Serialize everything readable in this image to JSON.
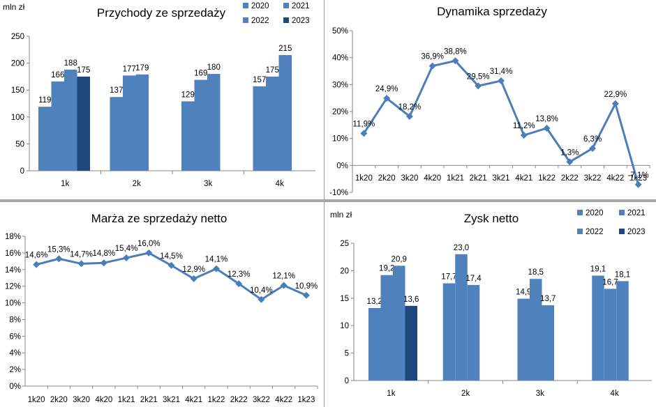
{
  "colors": {
    "bar_light": "#4f81bd",
    "bar_dark": "#1f497d",
    "line": "#4a7ebb",
    "axis": "#868686",
    "text": "#000000"
  },
  "panels": {
    "revenue": {
      "title": "Przychody ze sprzedaży",
      "unit": "mln zł"
    },
    "dynamics": {
      "title": "Dynamika sprzedaży"
    },
    "margin": {
      "title": "Marża ze sprzedaży netto"
    },
    "profit": {
      "title": "Zysk netto",
      "unit": "mln zł"
    }
  },
  "chart_data": [
    {
      "type": "bar",
      "title": "Przychody ze sprzedaży",
      "ylabel": "mln zł",
      "categories": [
        "1k",
        "2k",
        "3k",
        "4k"
      ],
      "series": [
        {
          "name": "2020",
          "values": [
            119,
            137,
            129,
            157
          ]
        },
        {
          "name": "2021",
          "values": [
            166,
            177,
            169,
            175
          ]
        },
        {
          "name": "2022",
          "values": [
            188,
            179,
            180,
            215
          ]
        },
        {
          "name": "2023",
          "values": [
            175,
            null,
            null,
            null
          ]
        }
      ],
      "data_labels": [
        [
          "119",
          "166",
          "188",
          "175"
        ],
        [
          "137",
          "177",
          "179",
          ""
        ],
        [
          "129",
          "169",
          "180",
          ""
        ],
        [
          "157",
          "175",
          "215",
          ""
        ]
      ],
      "yticks": [
        "0",
        "50",
        "100",
        "150",
        "200",
        "250"
      ],
      "ylim": [
        0,
        250
      ],
      "legend": "top-right",
      "grid": false
    },
    {
      "type": "line",
      "title": "Dynamika sprzedaży",
      "x": [
        "1k20",
        "2k20",
        "3k20",
        "4k20",
        "1k21",
        "2k21",
        "3k21",
        "4k21",
        "1k22",
        "2k22",
        "3k22",
        "4k22",
        "1k23"
      ],
      "values": [
        11.9,
        24.9,
        18.2,
        36.9,
        38.8,
        29.5,
        31.4,
        11.2,
        13.8,
        1.3,
        6.3,
        22.9,
        -7.1
      ],
      "data_labels": [
        "11,9%",
        "24,9%",
        "18,2%",
        "36,9%",
        "38,8%",
        "29,5%",
        "31,4%",
        "11,2%",
        "13,8%",
        "1,3%",
        "6,3%",
        "22,9%",
        "-7,1%"
      ],
      "yticks": [
        "-10%",
        "0%",
        "10%",
        "20%",
        "30%",
        "40%",
        "50%"
      ],
      "ylim": [
        -10,
        50
      ],
      "grid": false
    },
    {
      "type": "line",
      "title": "Marża ze sprzedaży netto",
      "x": [
        "1k20",
        "2k20",
        "3k20",
        "4k20",
        "1k21",
        "2k21",
        "3k21",
        "4k21",
        "1k22",
        "2k22",
        "3k22",
        "4k22",
        "1k23"
      ],
      "values": [
        14.6,
        15.3,
        14.7,
        14.8,
        15.4,
        16.0,
        14.5,
        12.9,
        14.1,
        12.3,
        10.4,
        12.1,
        10.9
      ],
      "data_labels": [
        "14,6%",
        "15,3%",
        "14,7%",
        "14,8%",
        "15,4%",
        "16,0%",
        "14,5%",
        "12,9%",
        "14,1%",
        "12,3%",
        "10,4%",
        "12,1%",
        "10,9%"
      ],
      "yticks": [
        "0%",
        "2%",
        "4%",
        "6%",
        "8%",
        "10%",
        "12%",
        "14%",
        "16%",
        "18%"
      ],
      "ylim": [
        0,
        18
      ],
      "grid": false
    },
    {
      "type": "bar",
      "title": "Zysk netto",
      "ylabel": "mln zł",
      "categories": [
        "1k",
        "2k",
        "3k",
        "4k"
      ],
      "series": [
        {
          "name": "2020",
          "values": [
            13.2,
            17.7,
            14.9,
            19.1
          ]
        },
        {
          "name": "2021",
          "values": [
            19.2,
            23.0,
            18.5,
            16.7
          ]
        },
        {
          "name": "2022",
          "values": [
            20.9,
            17.4,
            13.7,
            18.1
          ]
        },
        {
          "name": "2023",
          "values": [
            13.6,
            null,
            null,
            null
          ]
        }
      ],
      "data_labels": [
        [
          "13,2",
          "19,2",
          "20,9",
          "13,6"
        ],
        [
          "17,7",
          "23,0",
          "17,4",
          ""
        ],
        [
          "14,9",
          "18,5",
          "13,7",
          ""
        ],
        [
          "19,1",
          "16,7",
          "18,1",
          ""
        ]
      ],
      "yticks": [
        "0",
        "5",
        "10",
        "15",
        "20",
        "25"
      ],
      "ylim": [
        0,
        25
      ],
      "legend": "top-right",
      "grid": false
    }
  ]
}
